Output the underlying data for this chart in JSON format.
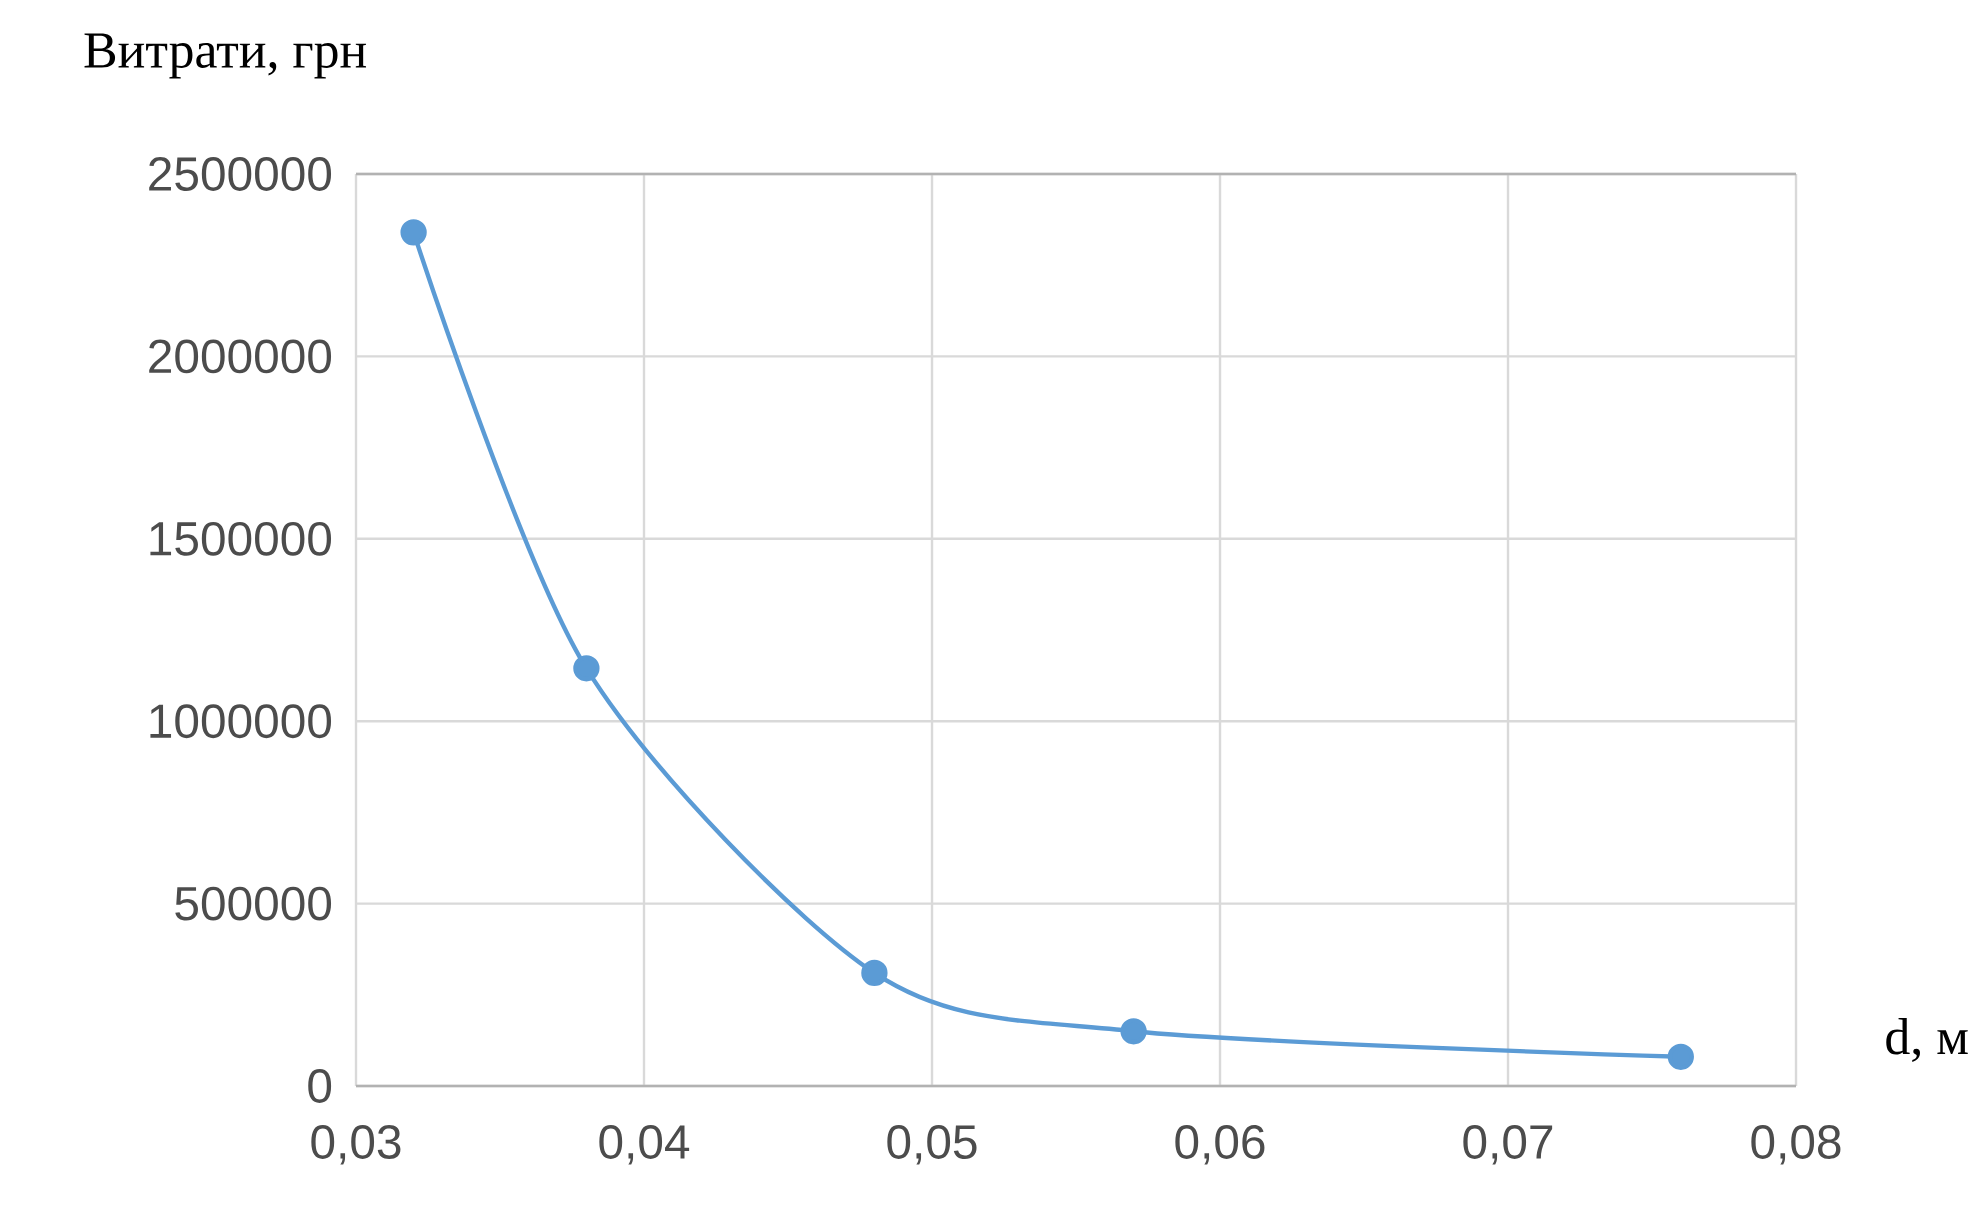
{
  "chart_data": {
    "type": "line",
    "xlabel": "d, м",
    "ylabel": "Витрати, грн",
    "x": [
      0.032,
      0.038,
      0.048,
      0.057,
      0.076
    ],
    "series": [
      {
        "color": "#5b9bd5",
        "values": [
          2340000,
          1145000,
          310000,
          150000,
          80000
        ]
      }
    ],
    "xlim": [
      0.03,
      0.08
    ],
    "ylim": [
      0,
      2500000
    ],
    "xticks": [
      {
        "value": 0.03,
        "label": "0,03"
      },
      {
        "value": 0.04,
        "label": "0,04"
      },
      {
        "value": 0.05,
        "label": "0,05"
      },
      {
        "value": 0.06,
        "label": "0,06"
      },
      {
        "value": 0.07,
        "label": "0,07"
      },
      {
        "value": 0.08,
        "label": "0,08"
      }
    ],
    "yticks": [
      0,
      500000,
      1000000,
      1500000,
      2000000,
      2500000
    ],
    "grid": true,
    "marker": "circle",
    "line_style": "solid"
  }
}
